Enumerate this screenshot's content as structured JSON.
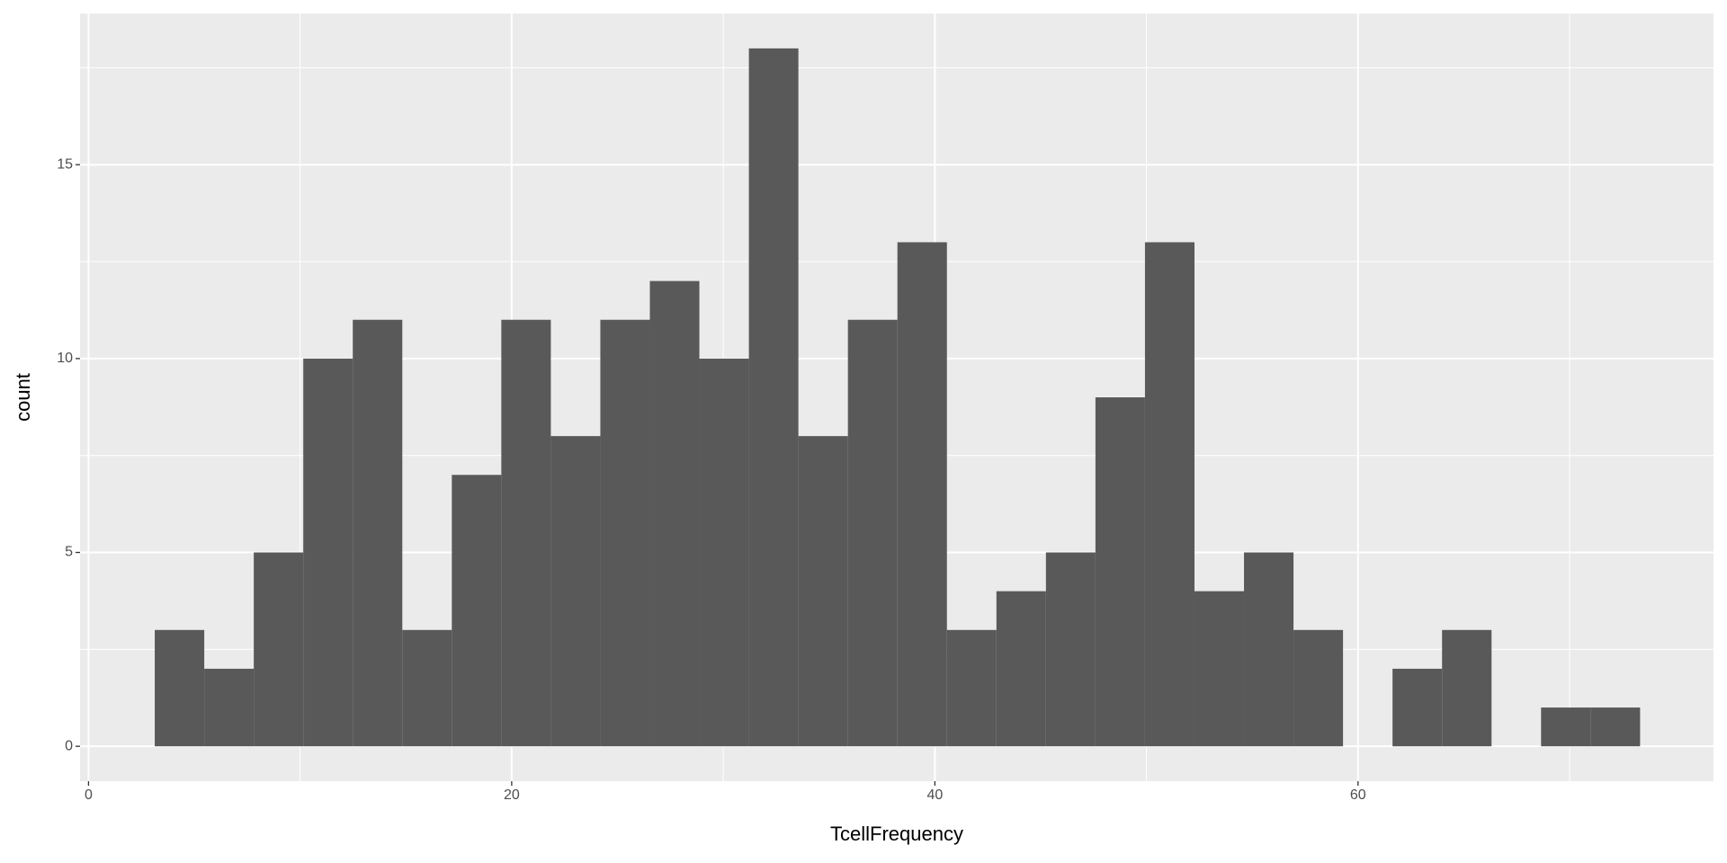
{
  "chart_data": {
    "type": "histogram",
    "x_label": "TcellFrequency",
    "y_label": "count",
    "bins": [
      3.13,
      5.47,
      7.81,
      10.15,
      12.49,
      14.83,
      17.17,
      19.51,
      21.85,
      24.19,
      26.53,
      28.87,
      31.21,
      33.55,
      35.89,
      38.23,
      40.57,
      42.91,
      45.25,
      47.59,
      49.93,
      52.27,
      54.61,
      56.95,
      59.29,
      61.63,
      63.97,
      66.31,
      68.65,
      70.99,
      73.33
    ],
    "values": [
      3,
      2,
      5,
      10,
      11,
      3,
      7,
      11,
      8,
      11,
      12,
      10,
      18,
      8,
      11,
      13,
      3,
      4,
      5,
      9,
      13,
      4,
      5,
      3,
      0,
      2,
      3,
      0,
      1,
      1
    ],
    "color": "#595959",
    "panel_color": "#ebebeb",
    "grid": true,
    "xlim": [
      -0.4,
      76.8
    ],
    "ylim": [
      -0.9,
      18.9
    ],
    "xticks": [
      0,
      20,
      40,
      60
    ],
    "yticks": [
      0,
      5,
      10,
      15
    ],
    "x_minor_breaks": [
      10,
      30,
      50,
      70
    ],
    "y_minor_breaks": [
      2.5,
      7.5,
      12.5,
      17.5
    ]
  }
}
